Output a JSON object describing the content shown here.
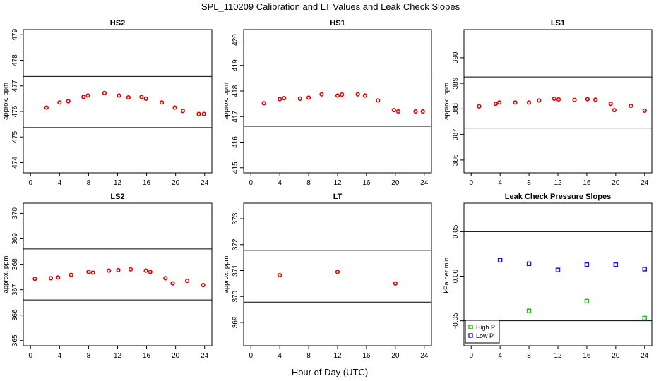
{
  "figure": {
    "title": "SPL_110209  Calibration and LT Values and Leak Check Slopes",
    "xlabel": "Hour of Day (UTC)"
  },
  "chart_data": [
    {
      "type": "scatter",
      "title": "HS2",
      "ylabel": "approx. ppm",
      "xlim": [
        -1,
        25
      ],
      "xticks": [
        0,
        4,
        8,
        12,
        16,
        20,
        24
      ],
      "ylim": [
        473.6,
        479.2
      ],
      "yticks": [
        474,
        475,
        476,
        477,
        478,
        479
      ],
      "hlines": [
        475.37,
        477.37
      ],
      "marker_color": "#dd0000",
      "x": [
        2.2,
        4.0,
        5.2,
        7.3,
        7.9,
        10.2,
        12.2,
        13.5,
        15.3,
        15.9,
        18.1,
        19.9,
        21.0,
        23.2,
        23.9
      ],
      "y": [
        476.15,
        476.35,
        476.4,
        476.57,
        476.62,
        476.72,
        476.62,
        476.55,
        476.57,
        476.5,
        476.35,
        476.15,
        476.02,
        475.9,
        475.9
      ]
    },
    {
      "type": "scatter",
      "title": "HS1",
      "ylabel": "approx. ppm",
      "xlim": [
        -1,
        25
      ],
      "xticks": [
        0,
        4,
        8,
        12,
        16,
        20,
        24
      ],
      "ylim": [
        414.8,
        420.4
      ],
      "yticks": [
        415,
        416,
        417,
        418,
        419,
        420
      ],
      "hlines": [
        416.62,
        418.62
      ],
      "marker_color": "#dd0000",
      "x": [
        1.8,
        4.0,
        4.6,
        6.8,
        8.0,
        9.8,
        12.0,
        12.6,
        14.8,
        15.8,
        17.6,
        19.8,
        20.4,
        22.8,
        23.8
      ],
      "y": [
        417.52,
        417.68,
        417.72,
        417.7,
        417.74,
        417.87,
        417.82,
        417.86,
        417.87,
        417.82,
        417.63,
        417.25,
        417.2,
        417.2,
        417.2
      ]
    },
    {
      "type": "scatter",
      "title": "LS1",
      "ylabel": "approx. ppm",
      "xlim": [
        -1,
        25
      ],
      "xticks": [
        0,
        4,
        8,
        12,
        16,
        20,
        24
      ],
      "ylim": [
        385.5,
        391.1
      ],
      "yticks": [
        386,
        387,
        388,
        389,
        390
      ],
      "hlines": [
        387.25,
        389.25
      ],
      "marker_color": "#dd0000",
      "x": [
        1.1,
        3.4,
        3.9,
        6.1,
        8.0,
        9.4,
        11.5,
        12.1,
        14.3,
        16.1,
        17.2,
        19.3,
        19.8,
        22.1,
        24.0
      ],
      "y": [
        388.1,
        388.2,
        388.25,
        388.25,
        388.25,
        388.33,
        388.4,
        388.37,
        388.35,
        388.38,
        388.36,
        388.2,
        387.95,
        388.12,
        387.93
      ]
    },
    {
      "type": "scatter",
      "title": "LS2",
      "ylabel": "approx. ppm",
      "xlim": [
        -1,
        25
      ],
      "xticks": [
        0,
        4,
        8,
        12,
        16,
        20,
        24
      ],
      "ylim": [
        364.8,
        370.4
      ],
      "yticks": [
        365,
        366,
        367,
        368,
        369,
        370
      ],
      "hlines": [
        366.6,
        368.6
      ],
      "marker_color": "#dd0000",
      "x": [
        0.6,
        2.8,
        3.8,
        5.6,
        8.0,
        8.6,
        10.8,
        12.1,
        13.8,
        15.9,
        16.5,
        18.6,
        19.6,
        21.6,
        23.8
      ],
      "y": [
        367.43,
        367.45,
        367.48,
        367.58,
        367.7,
        367.67,
        367.75,
        367.77,
        367.8,
        367.75,
        367.7,
        367.45,
        367.25,
        367.35,
        367.18
      ]
    },
    {
      "type": "scatter",
      "title": "LT",
      "ylabel": "approx. ppm",
      "xlim": [
        -1,
        25
      ],
      "xticks": [
        0,
        4,
        8,
        12,
        16,
        20,
        24
      ],
      "ylim": [
        368.1,
        373.6
      ],
      "yticks": [
        369,
        370,
        371,
        372,
        373
      ],
      "hlines": [
        369.78,
        371.78
      ],
      "marker_color": "#dd0000",
      "x": [
        4.0,
        12.0,
        20.0
      ],
      "y": [
        370.82,
        370.95,
        370.5
      ]
    },
    {
      "type": "scatter",
      "title": "Leak Check Pressure Slopes",
      "ylabel": "kPa per min.",
      "xlim": [
        -1,
        25
      ],
      "xticks": [
        0,
        4,
        8,
        12,
        16,
        20,
        24
      ],
      "ylim": [
        -0.078,
        0.082
      ],
      "yticks": [
        -0.05,
        0.0,
        0.05
      ],
      "ytick_labels": [
        "-0.05",
        "0.00",
        "0.05"
      ],
      "hlines": [
        -0.05,
        0.05
      ],
      "series": [
        {
          "name": "High P",
          "color": "#22bb22",
          "x": [
            8,
            16,
            24
          ],
          "y": [
            -0.039,
            -0.028,
            -0.047
          ]
        },
        {
          "name": "Low P",
          "color": "#1a1acc",
          "x": [
            4,
            8,
            12,
            16,
            20,
            24
          ],
          "y": [
            0.018,
            0.014,
            0.007,
            0.013,
            0.013,
            0.008
          ]
        }
      ],
      "legend_position": "bottom-left"
    }
  ]
}
